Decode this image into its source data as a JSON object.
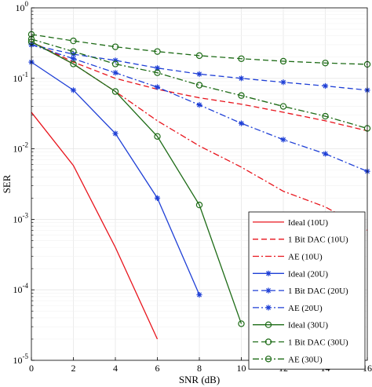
{
  "chart_data": {
    "type": "line",
    "xlabel": "SNR (dB)",
    "ylabel": "SER",
    "xlim": [
      0,
      16
    ],
    "ylim": [
      1e-05,
      1
    ],
    "y_scale": "log",
    "grid": true,
    "legend_position": "bottom-right",
    "x_ticks": [
      "0",
      "2",
      "4",
      "6",
      "8",
      "10",
      "12",
      "14",
      "16"
    ],
    "y_ticks": [
      {
        "base": "10",
        "exp": "-5",
        "value": 1e-05
      },
      {
        "base": "10",
        "exp": "-4",
        "value": 0.0001
      },
      {
        "base": "10",
        "exp": "-3",
        "value": 0.001
      },
      {
        "base": "10",
        "exp": "-2",
        "value": 0.01
      },
      {
        "base": "10",
        "exp": "-1",
        "value": 0.1
      },
      {
        "base": "10",
        "exp": "0",
        "value": 1
      }
    ],
    "series": [
      {
        "name": "Ideal (10U)",
        "color": "#e8141c",
        "dash": "solid",
        "marker": "none",
        "x": [
          0,
          2,
          4,
          6
        ],
        "y": [
          0.033,
          0.0058,
          0.0004,
          2e-05
        ]
      },
      {
        "name": "1 Bit DAC (10U)",
        "color": "#e8141c",
        "dash": "dashed",
        "marker": "none",
        "x": [
          0,
          2,
          4,
          6,
          8,
          10,
          12,
          14,
          16
        ],
        "y": [
          0.33,
          0.17,
          0.1,
          0.07,
          0.053,
          0.043,
          0.033,
          0.025,
          0.018
        ]
      },
      {
        "name": "AE (10U)",
        "color": "#e8141c",
        "dash": "dashdot",
        "marker": "none",
        "x": [
          0,
          2,
          4,
          6,
          8,
          10,
          12,
          14,
          16
        ],
        "y": [
          0.33,
          0.16,
          0.065,
          0.025,
          0.011,
          0.0055,
          0.0025,
          0.0015,
          0.0007
        ]
      },
      {
        "name": "Ideal (20U)",
        "color": "#1e3fd6",
        "dash": "solid",
        "marker": "star",
        "x": [
          0,
          2,
          4,
          6,
          8
        ],
        "y": [
          0.17,
          0.068,
          0.0165,
          0.002,
          8.5e-05
        ]
      },
      {
        "name": "1 Bit DAC (20U)",
        "color": "#1e3fd6",
        "dash": "dashed",
        "marker": "star",
        "x": [
          0,
          2,
          4,
          6,
          8,
          10,
          12,
          14,
          16
        ],
        "y": [
          0.3,
          0.22,
          0.18,
          0.14,
          0.115,
          0.1,
          0.088,
          0.078,
          0.068
        ]
      },
      {
        "name": "AE (20U)",
        "color": "#1e3fd6",
        "dash": "dashdot",
        "marker": "star",
        "x": [
          0,
          2,
          4,
          6,
          8,
          10,
          12,
          14,
          16
        ],
        "y": [
          0.3,
          0.19,
          0.12,
          0.075,
          0.042,
          0.023,
          0.0135,
          0.0085,
          0.0048
        ]
      },
      {
        "name": "Ideal (30U)",
        "color": "#1d6b16",
        "dash": "solid",
        "marker": "circle",
        "x": [
          0,
          2,
          4,
          6,
          8,
          10
        ],
        "y": [
          0.33,
          0.16,
          0.065,
          0.015,
          0.0016,
          3.3e-05
        ]
      },
      {
        "name": "1 Bit DAC (30U)",
        "color": "#1d6b16",
        "dash": "dashed",
        "marker": "circle",
        "x": [
          0,
          2,
          4,
          6,
          8,
          10,
          12,
          14,
          16
        ],
        "y": [
          0.42,
          0.34,
          0.28,
          0.24,
          0.21,
          0.19,
          0.175,
          0.165,
          0.158
        ]
      },
      {
        "name": "AE (30U)",
        "color": "#1d6b16",
        "dash": "dashdot",
        "marker": "circle",
        "x": [
          0,
          2,
          4,
          6,
          8,
          10,
          12,
          14,
          16
        ],
        "y": [
          0.36,
          0.24,
          0.16,
          0.12,
          0.08,
          0.057,
          0.04,
          0.029,
          0.0195
        ]
      }
    ]
  }
}
